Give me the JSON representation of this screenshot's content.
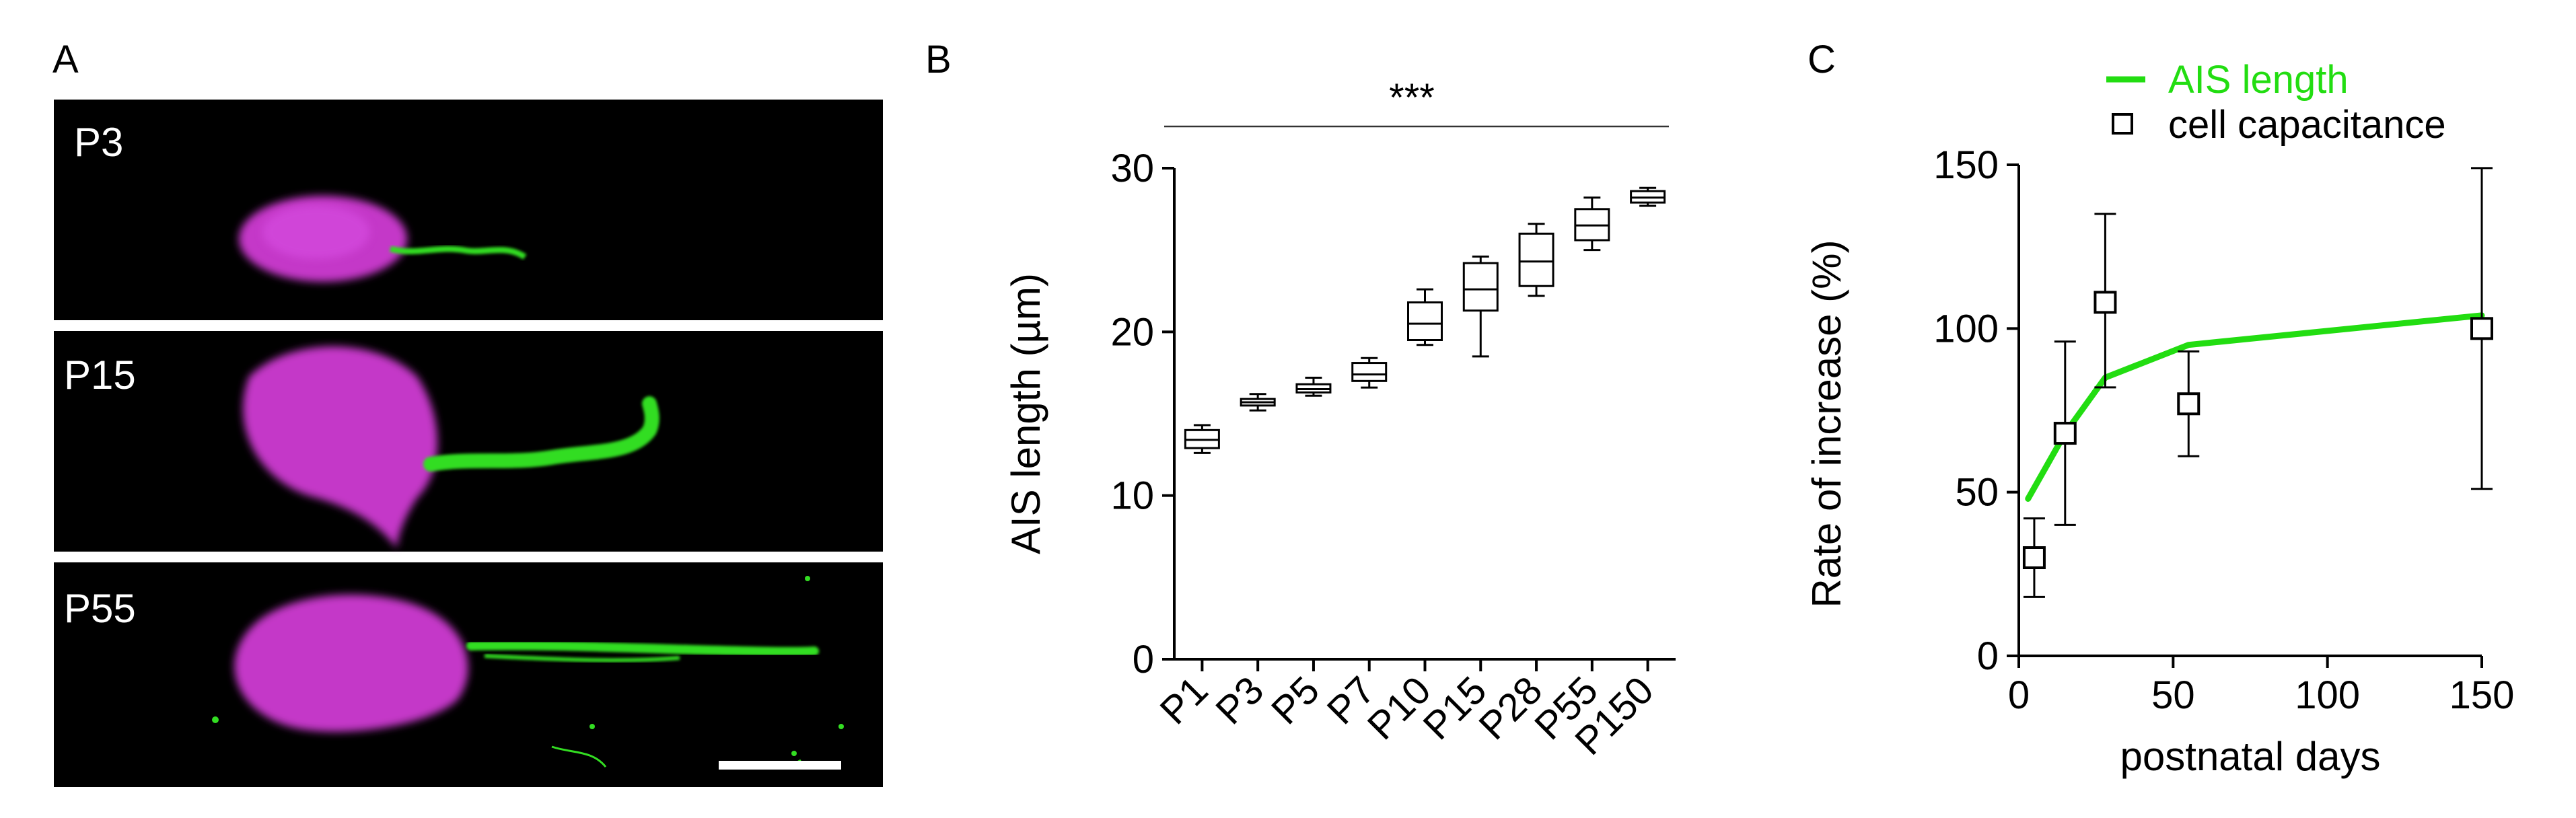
{
  "panelA": {
    "letter": "A",
    "panels": [
      {
        "label": "P3"
      },
      {
        "label": "P15"
      },
      {
        "label": "P55"
      }
    ],
    "colors": {
      "soma": "#d23cd2",
      "ais": "#33dd22",
      "background": "#000000",
      "scalebar": "#ffffff"
    }
  },
  "panelB": {
    "letter": "B",
    "significance": "***",
    "chart_data": {
      "type": "box",
      "categories": [
        "P1",
        "P3",
        "P5",
        "P7",
        "P10",
        "P15",
        "P28",
        "P55",
        "P150"
      ],
      "boxes": [
        {
          "category": "P1",
          "min": 12.6,
          "q1": 12.9,
          "median": 13.4,
          "q3": 14.0,
          "max": 14.3
        },
        {
          "category": "P3",
          "min": 15.2,
          "q1": 15.5,
          "median": 15.7,
          "q3": 15.9,
          "max": 16.2
        },
        {
          "category": "P5",
          "min": 16.1,
          "q1": 16.3,
          "median": 16.5,
          "q3": 16.8,
          "max": 17.2
        },
        {
          "category": "P7",
          "min": 16.6,
          "q1": 17.0,
          "median": 17.4,
          "q3": 18.1,
          "max": 18.4
        },
        {
          "category": "P10",
          "min": 19.2,
          "q1": 19.5,
          "median": 20.5,
          "q3": 21.8,
          "max": 22.6
        },
        {
          "category": "P15",
          "min": 18.5,
          "q1": 21.3,
          "median": 22.6,
          "q3": 24.2,
          "max": 24.6
        },
        {
          "category": "P28",
          "min": 22.2,
          "q1": 22.8,
          "median": 24.3,
          "q3": 26.0,
          "max": 26.6
        },
        {
          "category": "P55",
          "min": 25.0,
          "q1": 25.6,
          "median": 26.5,
          "q3": 27.5,
          "max": 28.2
        },
        {
          "category": "P150",
          "min": 27.7,
          "q1": 27.9,
          "median": 28.2,
          "q3": 28.6,
          "max": 28.8
        }
      ],
      "ylabel": "AIS length (µm)",
      "ylim": [
        0,
        30
      ],
      "yticks": [
        0,
        10,
        20,
        30
      ],
      "grid": false
    }
  },
  "panelC": {
    "letter": "C",
    "chart_data": {
      "type": "line",
      "xlabel": "postnatal days",
      "ylabel": "Rate of increase (%)",
      "xlim": [
        0,
        150
      ],
      "ylim": [
        0,
        150
      ],
      "xticks": [
        0,
        50,
        100,
        150
      ],
      "yticks": [
        0,
        50,
        100,
        150
      ],
      "legend_position": "top",
      "series": [
        {
          "name": "AIS length",
          "type": "line",
          "color": "#22dd11",
          "x": [
            3,
            15,
            28,
            55,
            150
          ],
          "y": [
            48,
            68,
            85,
            95,
            104
          ]
        },
        {
          "name": "cell capacitance",
          "type": "scatter",
          "marker": "open-square",
          "x": [
            5,
            15,
            28,
            55,
            150
          ],
          "y": [
            30,
            68,
            108,
            77,
            100
          ],
          "error_low": [
            18,
            40,
            82,
            61,
            51
          ],
          "error_high": [
            42,
            96,
            135,
            93,
            149
          ]
        }
      ]
    }
  }
}
